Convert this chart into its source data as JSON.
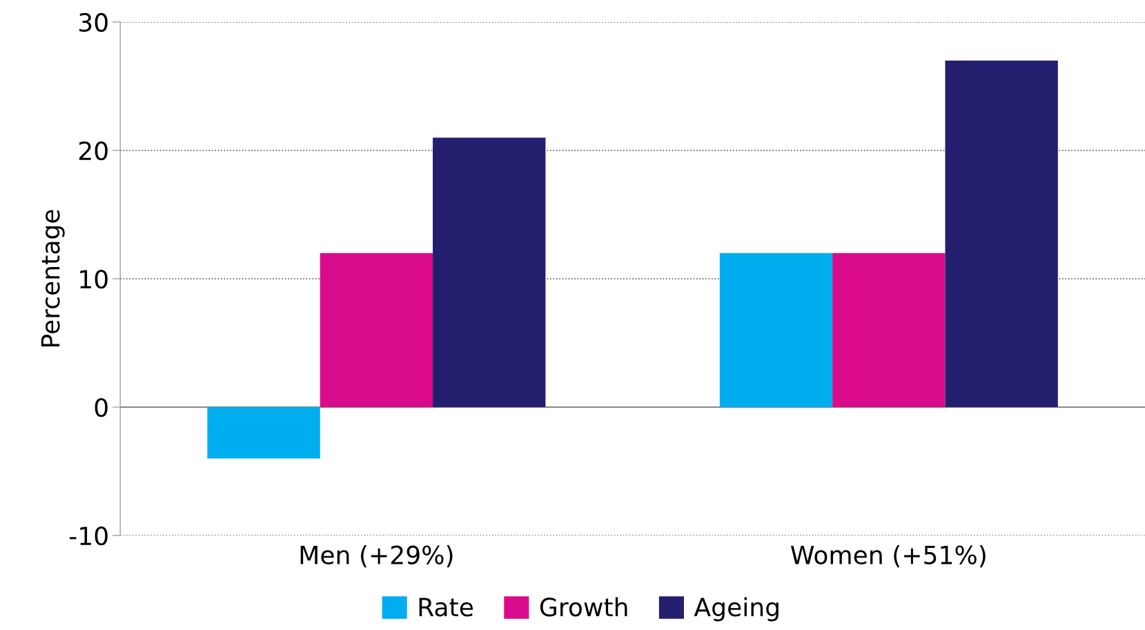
{
  "chart_data": {
    "type": "bar",
    "ylabel": "Percentage",
    "categories": [
      "Men (+29%)",
      "Women (+51%)"
    ],
    "series": [
      {
        "name": "Rate",
        "color": "#00aeef",
        "values": [
          -4,
          12
        ]
      },
      {
        "name": "Growth",
        "color": "#d90b8c",
        "values": [
          12,
          12
        ]
      },
      {
        "name": "Ageing",
        "color": "#231f6e",
        "values": [
          21,
          27
        ]
      }
    ],
    "ylim": [
      -10,
      30
    ],
    "yticks": [
      -10,
      0,
      10,
      20,
      30
    ],
    "grid": "y",
    "legend": "bottom"
  }
}
